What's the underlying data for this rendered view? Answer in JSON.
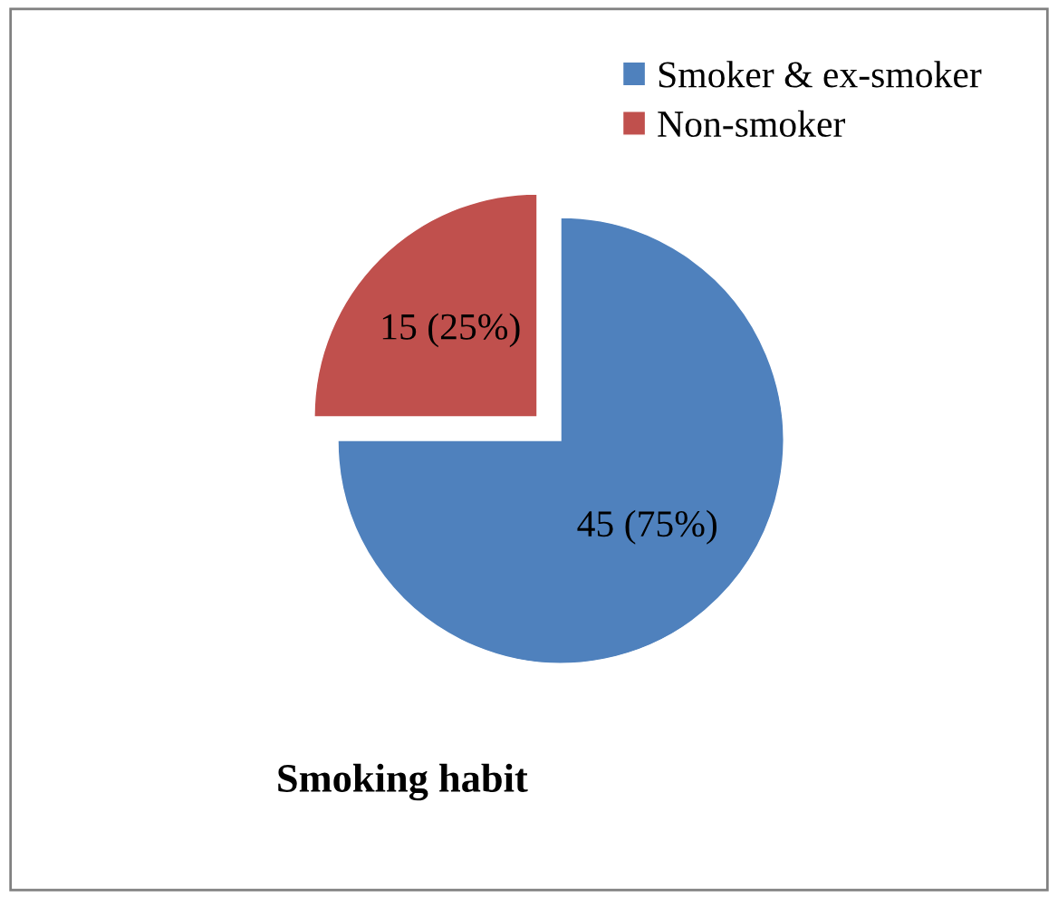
{
  "chart_data": {
    "type": "pie",
    "title": "Smoking habit",
    "categories": [
      "Smoker & ex-smoker",
      "Non-smoker"
    ],
    "values": [
      45,
      15
    ],
    "colors": [
      "#4f81bd",
      "#c0504d"
    ],
    "value_labels": [
      "45 (75%)",
      "15 (25%)"
    ],
    "legend": "top right"
  }
}
